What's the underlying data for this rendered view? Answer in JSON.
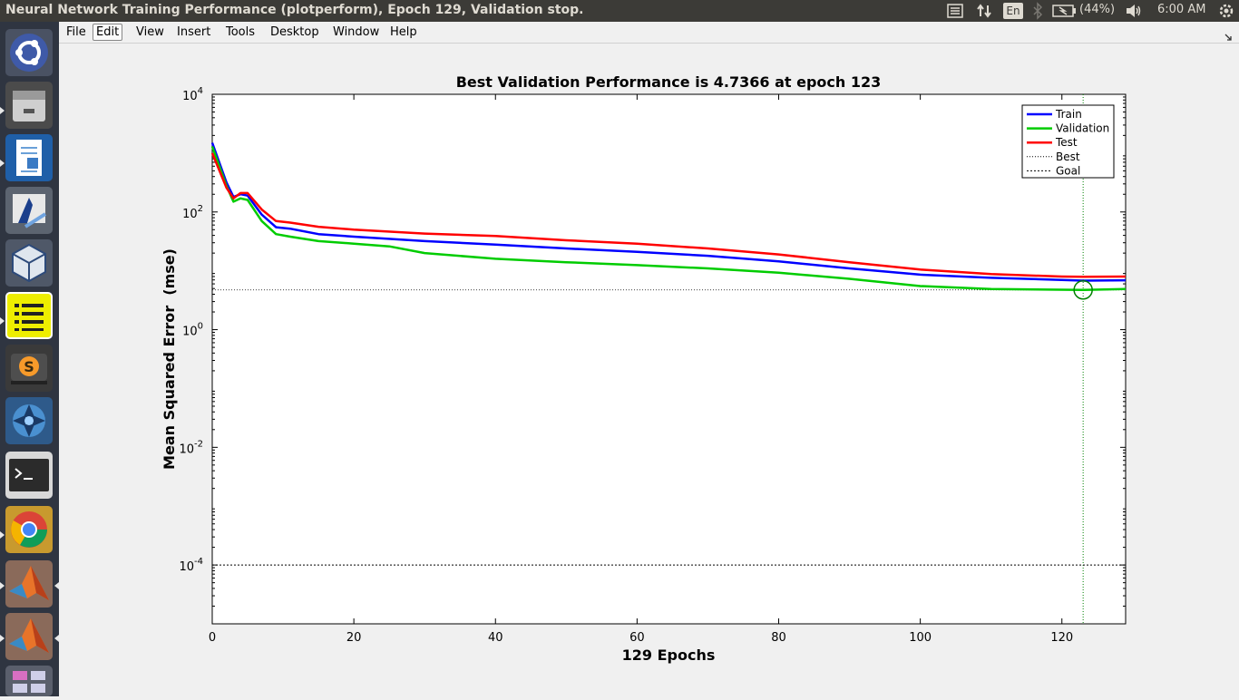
{
  "window": {
    "title": "Neural Network Training Performance (plotperform), Epoch 129, Validation stop."
  },
  "topbar": {
    "keyboard_layout": "En",
    "battery": "(44%)",
    "clock": "6:00 AM",
    "icons": [
      "messaging-menu-icon",
      "network-updown-icon",
      "bluetooth-icon",
      "battery-icon",
      "volume-icon",
      "power-gear-icon"
    ]
  },
  "launcher": {
    "apps": [
      {
        "name": "ubuntu-dash",
        "icon": "ubuntu-logo-icon"
      },
      {
        "name": "files",
        "icon": "file-cabinet-icon"
      },
      {
        "name": "writer",
        "icon": "document-writer-icon"
      },
      {
        "name": "ide",
        "icon": "ide-icon"
      },
      {
        "name": "virtualbox",
        "icon": "virtualbox-cube-icon"
      },
      {
        "name": "notes",
        "icon": "list-notes-icon"
      },
      {
        "name": "sublime-text",
        "icon": "sublime-s-icon"
      },
      {
        "name": "shutter",
        "icon": "shutter-aperture-icon"
      },
      {
        "name": "terminal",
        "icon": "terminal-icon"
      },
      {
        "name": "chrome",
        "icon": "chrome-icon"
      },
      {
        "name": "matlab",
        "icon": "matlab-membrane-icon"
      },
      {
        "name": "matlab-2",
        "icon": "matlab-membrane-icon"
      },
      {
        "name": "workspace-switcher",
        "icon": "workspace-icon"
      }
    ]
  },
  "menubar": {
    "items": [
      "File",
      "Edit",
      "View",
      "Insert",
      "Tools",
      "Desktop",
      "Window",
      "Help"
    ],
    "active": "Edit"
  },
  "chart_data": {
    "type": "line",
    "title": "Best Validation Performance is 4.7366 at epoch 123",
    "xlabel": "129 Epochs",
    "ylabel": "Mean Squared Error  (mse)",
    "xlim": [
      0,
      129
    ],
    "ylim_log10": [
      -5,
      4
    ],
    "yscale": "log",
    "x_ticks": [
      "0",
      "20",
      "40",
      "60",
      "80",
      "100",
      "120"
    ],
    "x_tick_values": [
      0,
      20,
      40,
      60,
      80,
      100,
      120
    ],
    "y_ticks": [
      {
        "base": "10",
        "exp": "4",
        "value": 4
      },
      {
        "base": "10",
        "exp": "2",
        "value": 2
      },
      {
        "base": "10",
        "exp": "0",
        "value": 0
      },
      {
        "base": "10",
        "exp": "-2",
        "value": -2
      },
      {
        "base": "10",
        "exp": "-4",
        "value": -4
      }
    ],
    "legend_position": "top-right",
    "series": [
      {
        "name": "Train",
        "color": "#0000ff",
        "x": [
          0,
          2,
          3,
          4,
          5,
          7,
          9,
          11,
          15,
          20,
          30,
          40,
          50,
          60,
          70,
          80,
          90,
          100,
          110,
          120,
          123,
          129
        ],
        "y": [
          1500,
          320,
          180,
          200,
          190,
          90,
          55,
          52,
          42,
          38,
          32,
          28,
          24,
          21,
          18,
          14.5,
          11,
          8.6,
          7.6,
          7.0,
          6.8,
          6.9
        ]
      },
      {
        "name": "Validation",
        "color": "#00cc00",
        "x": [
          0,
          2,
          3,
          4,
          5,
          7,
          9,
          11,
          15,
          20,
          25,
          30,
          40,
          50,
          60,
          70,
          80,
          90,
          100,
          110,
          123,
          129
        ],
        "y": [
          1300,
          280,
          150,
          170,
          160,
          70,
          42,
          38,
          32,
          29,
          26,
          20,
          16,
          14,
          12.5,
          11,
          9.3,
          7.3,
          5.5,
          4.9,
          4.7366,
          4.9
        ]
      },
      {
        "name": "Test",
        "color": "#ff0000",
        "x": [
          0,
          2,
          3,
          4,
          5,
          7,
          9,
          11,
          15,
          20,
          30,
          40,
          50,
          60,
          70,
          80,
          90,
          100,
          110,
          120,
          123,
          129
        ],
        "y": [
          1000,
          260,
          170,
          210,
          210,
          110,
          70,
          66,
          56,
          50,
          43,
          39,
          33,
          29,
          24,
          19,
          14,
          10.5,
          8.8,
          8.0,
          7.9,
          8.0
        ]
      }
    ],
    "best": {
      "name": "Best",
      "epoch": 123,
      "value": 4.7366,
      "color": "#008000"
    },
    "goal": {
      "name": "Goal",
      "value": 0.0001,
      "color": "#000000"
    }
  }
}
